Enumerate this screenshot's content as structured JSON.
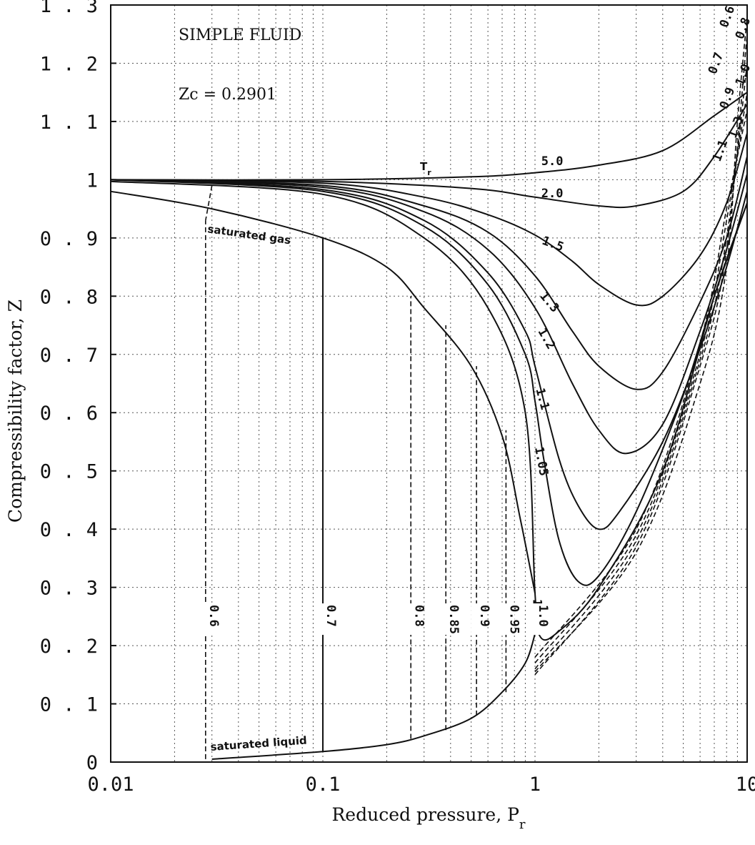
{
  "chart_data": {
    "type": "line",
    "title": "SIMPLE FLUID",
    "subtitle": "Zc = 0.2901",
    "xlabel": "Reduced pressure, P",
    "xlabel_sub": "r",
    "ylabel": "Compressibility factor, Z",
    "xscale": "log",
    "xlim": [
      0.01,
      10
    ],
    "ylim": [
      0,
      1.3
    ],
    "grid": true,
    "x_ticks": [
      "0.01",
      "0.1",
      "1",
      "10"
    ],
    "y_ticks": [
      "0",
      "0 . 1",
      "0 . 2",
      "0 . 3",
      "0 . 4",
      "0 . 5",
      "0 . 6",
      "0 . 7",
      "0 . 8",
      "0 . 9",
      "1",
      "1 . 1",
      "1 . 2",
      "1 . 3"
    ],
    "legend_title": "T",
    "legend_title_sub": "r",
    "annotations": {
      "saturated_gas": "saturated gas",
      "saturated_liquid": "saturated liquid"
    },
    "series": [
      {
        "name": "5.0",
        "style": "solid",
        "points": [
          [
            0.01,
            1.0
          ],
          [
            0.1,
            1.0
          ],
          [
            0.5,
            1.005
          ],
          [
            1,
            1.012
          ],
          [
            2,
            1.025
          ],
          [
            4,
            1.05
          ],
          [
            7,
            1.11
          ],
          [
            10,
            1.15
          ]
        ]
      },
      {
        "name": "2.0",
        "style": "solid",
        "points": [
          [
            0.01,
            1.0
          ],
          [
            0.1,
            0.997
          ],
          [
            0.5,
            0.985
          ],
          [
            1,
            0.97
          ],
          [
            2,
            0.955
          ],
          [
            3,
            0.955
          ],
          [
            5,
            0.98
          ],
          [
            7,
            1.04
          ],
          [
            10,
            1.13
          ]
        ]
      },
      {
        "name": "1.5",
        "style": "solid",
        "points": [
          [
            0.01,
            1.0
          ],
          [
            0.1,
            0.994
          ],
          [
            0.3,
            0.97
          ],
          [
            0.6,
            0.94
          ],
          [
            1,
            0.905
          ],
          [
            1.5,
            0.86
          ],
          [
            2,
            0.82
          ],
          [
            3,
            0.785
          ],
          [
            4,
            0.8
          ],
          [
            6,
            0.87
          ],
          [
            8,
            0.96
          ],
          [
            10,
            1.08
          ]
        ]
      },
      {
        "name": "1.3",
        "style": "solid",
        "points": [
          [
            0.01,
            1.0
          ],
          [
            0.1,
            0.99
          ],
          [
            0.3,
            0.955
          ],
          [
            0.6,
            0.91
          ],
          [
            1,
            0.835
          ],
          [
            1.5,
            0.74
          ],
          [
            2,
            0.68
          ],
          [
            3,
            0.64
          ],
          [
            4,
            0.67
          ],
          [
            6,
            0.79
          ],
          [
            8,
            0.9
          ],
          [
            10,
            1.04
          ]
        ]
      },
      {
        "name": "1.2",
        "style": "solid",
        "points": [
          [
            0.01,
            1.0
          ],
          [
            0.1,
            0.987
          ],
          [
            0.3,
            0.945
          ],
          [
            0.6,
            0.88
          ],
          [
            1,
            0.78
          ],
          [
            1.5,
            0.65
          ],
          [
            2,
            0.57
          ],
          [
            2.7,
            0.53
          ],
          [
            4,
            0.58
          ],
          [
            6,
            0.74
          ],
          [
            8,
            0.88
          ],
          [
            10,
            1.01
          ]
        ]
      },
      {
        "name": "1.1",
        "style": "solid",
        "points": [
          [
            0.01,
            1.0
          ],
          [
            0.1,
            0.983
          ],
          [
            0.3,
            0.93
          ],
          [
            0.6,
            0.84
          ],
          [
            0.9,
            0.74
          ],
          [
            1,
            0.68
          ],
          [
            1.3,
            0.52
          ],
          [
            1.6,
            0.44
          ],
          [
            2,
            0.4
          ],
          [
            2.5,
            0.43
          ],
          [
            4,
            0.55
          ],
          [
            6,
            0.71
          ],
          [
            8,
            0.85
          ],
          [
            10,
            0.98
          ]
        ]
      },
      {
        "name": "1.05",
        "style": "solid",
        "points": [
          [
            0.01,
            1.0
          ],
          [
            0.1,
            0.98
          ],
          [
            0.3,
            0.92
          ],
          [
            0.6,
            0.82
          ],
          [
            0.9,
            0.7
          ],
          [
            1,
            0.62
          ],
          [
            1.1,
            0.52
          ],
          [
            1.3,
            0.38
          ],
          [
            1.6,
            0.31
          ],
          [
            2,
            0.32
          ],
          [
            3,
            0.43
          ],
          [
            5,
            0.63
          ],
          [
            7,
            0.8
          ],
          [
            10,
            0.96
          ]
        ]
      },
      {
        "name": "1.0",
        "style": "solid",
        "points": [
          [
            0.01,
            0.997
          ],
          [
            0.1,
            0.975
          ],
          [
            0.3,
            0.9
          ],
          [
            0.6,
            0.78
          ],
          [
            0.9,
            0.6
          ],
          [
            1,
            0.29
          ],
          [
            1.06,
            0.215
          ],
          [
            1.3,
            0.225
          ],
          [
            2,
            0.3
          ],
          [
            4,
            0.5
          ],
          [
            7,
            0.8
          ],
          [
            10,
            0.96
          ]
        ]
      },
      {
        "name": "saturated gas",
        "style": "solid",
        "points": [
          [
            0.01,
            0.98
          ],
          [
            0.03,
            0.95
          ],
          [
            0.1,
            0.9
          ],
          [
            0.2,
            0.85
          ],
          [
            0.3,
            0.78
          ],
          [
            0.5,
            0.68
          ],
          [
            0.7,
            0.56
          ],
          [
            0.85,
            0.42
          ],
          [
            1,
            0.29
          ]
        ]
      },
      {
        "name": "saturated liquid",
        "style": "solid",
        "points": [
          [
            0.03,
            0.005
          ],
          [
            0.1,
            0.018
          ],
          [
            0.2,
            0.03
          ],
          [
            0.3,
            0.045
          ],
          [
            0.5,
            0.075
          ],
          [
            0.7,
            0.12
          ],
          [
            0.9,
            0.17
          ],
          [
            1,
            0.22
          ]
        ]
      },
      {
        "name": "0.6",
        "style": "dashed",
        "points": [
          [
            0.028,
            0.005
          ],
          [
            0.028,
            0.93
          ]
        ]
      },
      {
        "name": "0.7",
        "style": "solid",
        "points": [
          [
            0.1,
            0.018
          ],
          [
            0.1,
            0.9
          ]
        ]
      },
      {
        "name": "0.8",
        "style": "dashed",
        "points": [
          [
            0.26,
            0.04
          ],
          [
            0.26,
            0.8
          ]
        ]
      },
      {
        "name": "0.85",
        "style": "dashed",
        "points": [
          [
            0.38,
            0.055
          ],
          [
            0.38,
            0.75
          ]
        ]
      },
      {
        "name": "0.9",
        "style": "dashed",
        "points": [
          [
            0.53,
            0.08
          ],
          [
            0.53,
            0.68
          ]
        ]
      },
      {
        "name": "0.95",
        "style": "dashed",
        "points": [
          [
            0.73,
            0.12
          ],
          [
            0.73,
            0.57
          ]
        ]
      },
      {
        "name": "0.6",
        "style": "dashed",
        "points": [
          [
            0.03,
            0.99
          ],
          [
            0.028,
            0.93
          ]
        ]
      },
      {
        "name": "0.7",
        "style": "dashed",
        "points": [
          [
            1,
            0.155
          ],
          [
            3,
            0.36
          ],
          [
            6,
            0.65
          ],
          [
            8,
            0.85
          ],
          [
            9,
            1.1
          ],
          [
            10,
            1.28
          ]
        ]
      },
      {
        "name": "0.8",
        "style": "dashed",
        "points": [
          [
            1,
            0.15
          ],
          [
            3,
            0.37
          ],
          [
            6,
            0.68
          ],
          [
            8,
            0.88
          ],
          [
            10,
            1.25
          ]
        ]
      },
      {
        "name": "0.9",
        "style": "dashed",
        "points": [
          [
            1,
            0.16
          ],
          [
            3,
            0.38
          ],
          [
            6,
            0.69
          ],
          [
            8,
            0.9
          ],
          [
            10,
            1.2
          ]
        ]
      },
      {
        "name": "1.0",
        "style": "dashed",
        "points": [
          [
            1,
            0.17
          ],
          [
            3,
            0.39
          ],
          [
            6,
            0.7
          ],
          [
            8,
            0.93
          ],
          [
            10,
            1.15
          ]
        ]
      },
      {
        "name": "1.1",
        "style": "dashed",
        "points": [
          [
            1,
            0.18
          ],
          [
            3,
            0.4
          ],
          [
            6,
            0.72
          ],
          [
            8,
            0.95
          ],
          [
            10,
            1.12
          ]
        ]
      }
    ]
  },
  "labels": {
    "curve_labels": [
      "5.0",
      "2.0",
      "1.5",
      "1.3",
      "1.2",
      "1.1",
      "1.05",
      "1.0"
    ],
    "isotherm_labels": [
      "0.6",
      "0.7",
      "0.8",
      "0.85",
      "0.9",
      "0.95",
      "1.0"
    ],
    "right_edge_labels": [
      "0.6",
      "0.7",
      "0.8",
      "0.9",
      "1.0",
      "1.1",
      "1.3"
    ]
  }
}
